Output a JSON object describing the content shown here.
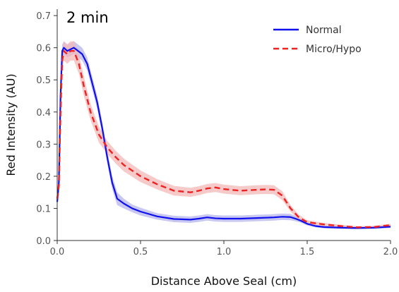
{
  "chart_data": {
    "type": "line",
    "panel_label": "2 min",
    "title": "",
    "xlabel": "Distance Above Seal (cm)",
    "ylabel": "Red Intensity (AU)",
    "xlim": [
      0,
      2.0
    ],
    "ylim": [
      0,
      0.72
    ],
    "x_ticks": [
      0.0,
      0.5,
      1.0,
      1.5,
      2.0
    ],
    "x_tick_labels": [
      "0.0",
      "0.5",
      "1.0",
      "1.5",
      "2.0"
    ],
    "y_ticks": [
      0.0,
      0.1,
      0.2,
      0.3,
      0.4,
      0.5,
      0.6,
      0.7
    ],
    "y_tick_labels": [
      "0.0",
      "0.1",
      "0.2",
      "0.3",
      "0.4",
      "0.5",
      "0.6",
      "0.7"
    ],
    "grid": false,
    "legend_position": "top-right",
    "series": [
      {
        "name": "Normal",
        "color": "#1010ee",
        "band_color": "#b4b4ee",
        "line_style": "solid",
        "x": [
          0.0,
          0.01,
          0.02,
          0.03,
          0.04,
          0.06,
          0.1,
          0.15,
          0.18,
          0.21,
          0.24,
          0.27,
          0.3,
          0.33,
          0.36,
          0.4,
          0.45,
          0.5,
          0.6,
          0.7,
          0.8,
          0.85,
          0.9,
          0.95,
          1.0,
          1.1,
          1.2,
          1.3,
          1.35,
          1.4,
          1.43,
          1.46,
          1.5,
          1.55,
          1.6,
          1.7,
          1.8,
          1.9,
          2.0
        ],
        "y": [
          0.12,
          0.18,
          0.45,
          0.59,
          0.6,
          0.59,
          0.6,
          0.58,
          0.55,
          0.49,
          0.43,
          0.35,
          0.26,
          0.18,
          0.13,
          0.115,
          0.1,
          0.09,
          0.075,
          0.067,
          0.065,
          0.068,
          0.072,
          0.069,
          0.068,
          0.068,
          0.07,
          0.072,
          0.074,
          0.073,
          0.068,
          0.062,
          0.052,
          0.045,
          0.042,
          0.04,
          0.039,
          0.04,
          0.043
        ],
        "band": [
          0.01,
          0.015,
          0.02,
          0.02,
          0.02,
          0.02,
          0.02,
          0.02,
          0.02,
          0.02,
          0.02,
          0.02,
          0.02,
          0.02,
          0.02,
          0.015,
          0.012,
          0.012,
          0.01,
          0.01,
          0.01,
          0.01,
          0.01,
          0.01,
          0.01,
          0.01,
          0.01,
          0.01,
          0.01,
          0.01,
          0.008,
          0.006,
          0.005,
          0.004,
          0.004,
          0.004,
          0.004,
          0.004,
          0.004
        ]
      },
      {
        "name": "Micro/Hypo",
        "color": "#ee2222",
        "band_color": "#f4b8b8",
        "line_style": "dashed",
        "x": [
          0.0,
          0.01,
          0.02,
          0.03,
          0.04,
          0.06,
          0.08,
          0.1,
          0.13,
          0.16,
          0.2,
          0.25,
          0.3,
          0.35,
          0.4,
          0.5,
          0.6,
          0.7,
          0.8,
          0.85,
          0.9,
          0.95,
          1.0,
          1.1,
          1.2,
          1.25,
          1.3,
          1.35,
          1.4,
          1.45,
          1.5,
          1.6,
          1.7,
          1.8,
          1.9,
          2.0
        ],
        "y": [
          0.13,
          0.17,
          0.4,
          0.56,
          0.59,
          0.58,
          0.59,
          0.59,
          0.55,
          0.48,
          0.4,
          0.33,
          0.29,
          0.26,
          0.235,
          0.2,
          0.175,
          0.155,
          0.15,
          0.155,
          0.162,
          0.165,
          0.16,
          0.155,
          0.158,
          0.159,
          0.158,
          0.14,
          0.1,
          0.072,
          0.057,
          0.05,
          0.045,
          0.041,
          0.042,
          0.048
        ],
        "band": [
          0.01,
          0.015,
          0.02,
          0.025,
          0.03,
          0.03,
          0.03,
          0.03,
          0.03,
          0.03,
          0.025,
          0.025,
          0.02,
          0.02,
          0.02,
          0.018,
          0.016,
          0.015,
          0.014,
          0.014,
          0.014,
          0.014,
          0.014,
          0.014,
          0.014,
          0.014,
          0.014,
          0.014,
          0.01,
          0.008,
          0.006,
          0.005,
          0.004,
          0.004,
          0.004,
          0.004
        ]
      }
    ]
  }
}
